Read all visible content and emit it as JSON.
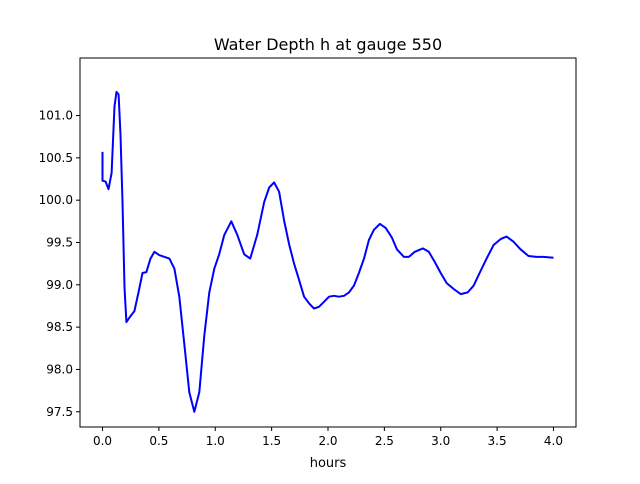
{
  "chart_data": {
    "type": "line",
    "title": "Water Depth h at gauge 550",
    "xlabel": "hours",
    "ylabel": "",
    "xlim": [
      -0.2,
      4.2
    ],
    "ylim": [
      97.32,
      101.68
    ],
    "xticks": [
      0.0,
      0.5,
      1.0,
      1.5,
      2.0,
      2.5,
      3.0,
      3.5,
      4.0
    ],
    "xtick_labels": [
      "0.0",
      "0.5",
      "1.0",
      "1.5",
      "2.0",
      "2.5",
      "3.0",
      "3.5",
      "4.0"
    ],
    "yticks": [
      97.5,
      98.0,
      98.5,
      99.0,
      99.5,
      100.0,
      100.5,
      101.0
    ],
    "ytick_labels": [
      "97.5",
      "98.0",
      "98.5",
      "99.0",
      "99.5",
      "100.0",
      "100.5",
      "101.0"
    ],
    "grid": false,
    "series": [
      {
        "name": "h",
        "color": "#0000ff",
        "x": [
          0,
          0,
          0.027,
          0.053,
          0.08,
          0.106,
          0.124,
          0.142,
          0.159,
          0.177,
          0.195,
          0.212,
          0.248,
          0.283,
          0.319,
          0.354,
          0.389,
          0.425,
          0.46,
          0.504,
          0.593,
          0.637,
          0.681,
          0.726,
          0.77,
          0.814,
          0.858,
          0.903,
          0.947,
          0.991,
          1.035,
          1.08,
          1.142,
          1.195,
          1.257,
          1.31,
          1.372,
          1.434,
          1.478,
          1.522,
          1.566,
          1.611,
          1.655,
          1.699,
          1.743,
          1.788,
          1.832,
          1.876,
          1.92,
          1.965,
          2.009,
          2.053,
          2.097,
          2.142,
          2.186,
          2.23,
          2.274,
          2.319,
          2.363,
          2.407,
          2.46,
          2.513,
          2.566,
          2.611,
          2.673,
          2.717,
          2.77,
          2.841,
          2.894,
          2.947,
          3.0,
          3.053,
          3.115,
          3.177,
          3.239,
          3.292,
          3.345,
          3.407,
          3.469,
          3.531,
          3.584,
          3.646,
          3.708,
          3.779,
          3.85,
          3.912,
          4.0
        ],
        "y": [
          100.57,
          100.23,
          100.22,
          100.13,
          100.32,
          101.11,
          101.28,
          101.25,
          100.77,
          99.98,
          98.97,
          98.56,
          98.63,
          98.69,
          98.91,
          99.14,
          99.15,
          99.31,
          99.39,
          99.35,
          99.31,
          99.19,
          98.86,
          98.29,
          97.73,
          97.5,
          97.73,
          98.4,
          98.91,
          99.19,
          99.36,
          99.59,
          99.75,
          99.59,
          99.36,
          99.31,
          99.59,
          99.98,
          100.15,
          100.21,
          100.1,
          99.76,
          99.48,
          99.25,
          99.06,
          98.86,
          98.78,
          98.72,
          98.74,
          98.8,
          98.86,
          98.87,
          98.86,
          98.87,
          98.91,
          98.99,
          99.14,
          99.31,
          99.53,
          99.65,
          99.72,
          99.67,
          99.56,
          99.42,
          99.33,
          99.33,
          99.39,
          99.43,
          99.39,
          99.27,
          99.14,
          99.02,
          98.95,
          98.89,
          98.91,
          98.99,
          99.14,
          99.31,
          99.47,
          99.54,
          99.57,
          99.51,
          99.42,
          99.34,
          99.33,
          99.33,
          99.32
        ]
      }
    ]
  }
}
